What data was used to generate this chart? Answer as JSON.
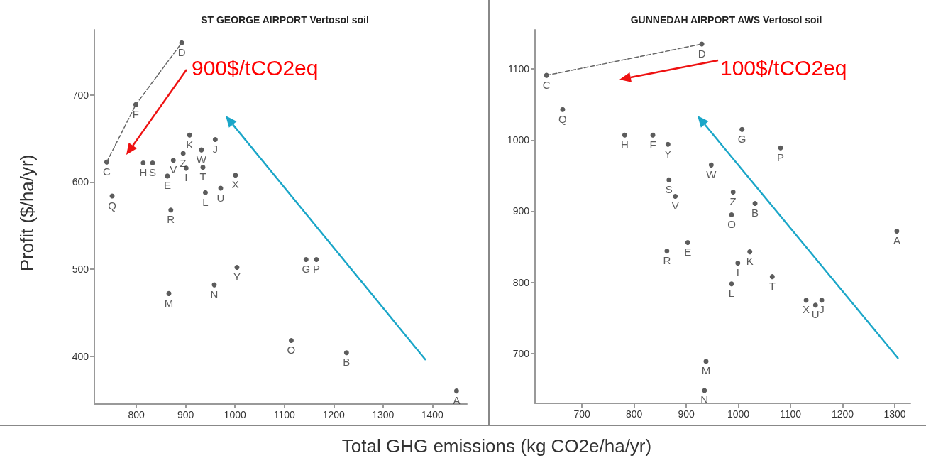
{
  "chart_data": [
    {
      "type": "scatter",
      "title": "ST GEORGE AIRPORT Vertosol soil",
      "xlabel": "Total GHG emissions (kg CO2e/ha/yr)",
      "ylabel": "Profit ($/ha/yr)",
      "annotations": [
        "900$/tCO2eq"
      ],
      "marker": "circle",
      "grid": false,
      "legend": false,
      "xlim": [
        715,
        1470
      ],
      "ylim": [
        345,
        775
      ],
      "xticks": [
        800,
        900,
        1000,
        1100,
        1200,
        1300,
        1400
      ],
      "yticks": [
        400,
        500,
        600,
        700
      ],
      "series": [
        {
          "type": "line",
          "marker": "none",
          "line_style": "dashed",
          "color": "#666666",
          "x": [
            740,
            799,
            892
          ],
          "values": [
            623,
            689,
            760
          ]
        },
        {
          "name": "A",
          "color": "#333333",
          "x": [
            1449
          ],
          "values": [
            360
          ]
        },
        {
          "name": "B",
          "color": "#333333",
          "x": [
            1226
          ],
          "values": [
            404
          ]
        },
        {
          "name": "C",
          "color": "#333333",
          "x": [
            740
          ],
          "values": [
            623
          ]
        },
        {
          "name": "D",
          "color": "#333333",
          "x": [
            892
          ],
          "values": [
            760
          ]
        },
        {
          "name": "E",
          "color": "#333333",
          "x": [
            863
          ],
          "values": [
            607
          ]
        },
        {
          "name": "F",
          "color": "#333333",
          "x": [
            799
          ],
          "values": [
            689
          ]
        },
        {
          "name": "G",
          "color": "#333333",
          "x": [
            1144
          ],
          "values": [
            511
          ]
        },
        {
          "name": "H",
          "color": "#333333",
          "x": [
            814
          ],
          "values": [
            622
          ]
        },
        {
          "name": "I",
          "color": "#333333",
          "x": [
            901
          ],
          "values": [
            616
          ]
        },
        {
          "name": "J",
          "color": "#333333",
          "x": [
            960
          ],
          "values": [
            649
          ]
        },
        {
          "name": "K",
          "color": "#333333",
          "x": [
            908
          ],
          "values": [
            654
          ]
        },
        {
          "name": "L",
          "color": "#333333",
          "x": [
            940
          ],
          "values": [
            588
          ]
        },
        {
          "name": "M",
          "color": "#333333",
          "x": [
            866
          ],
          "values": [
            472
          ]
        },
        {
          "name": "N",
          "color": "#333333",
          "x": [
            958
          ],
          "values": [
            482
          ]
        },
        {
          "name": "O",
          "color": "#333333",
          "x": [
            1114
          ],
          "values": [
            418
          ]
        },
        {
          "name": "P",
          "color": "#333333",
          "x": [
            1165
          ],
          "values": [
            511
          ]
        },
        {
          "name": "Q",
          "color": "#333333",
          "x": [
            751
          ],
          "values": [
            584
          ]
        },
        {
          "name": "R",
          "color": "#333333",
          "x": [
            870
          ],
          "values": [
            568
          ]
        },
        {
          "name": "S",
          "color": "#333333",
          "x": [
            833
          ],
          "values": [
            622
          ]
        },
        {
          "name": "T",
          "color": "#333333",
          "x": [
            935
          ],
          "values": [
            617
          ]
        },
        {
          "name": "U",
          "color": "#333333",
          "x": [
            971
          ],
          "values": [
            593
          ]
        },
        {
          "name": "V",
          "color": "#333333",
          "x": [
            875
          ],
          "values": [
            625
          ]
        },
        {
          "name": "W",
          "color": "#333333",
          "x": [
            932
          ],
          "values": [
            637
          ]
        },
        {
          "name": "X",
          "color": "#333333",
          "x": [
            1001
          ],
          "values": [
            608
          ]
        },
        {
          "name": "Y",
          "color": "#333333",
          "x": [
            1004
          ],
          "values": [
            502
          ]
        },
        {
          "name": "Z",
          "color": "#333333",
          "x": [
            895
          ],
          "values": [
            633
          ]
        }
      ]
    },
    {
      "type": "scatter",
      "title": "GUNNEDAH AIRPORT AWS Vertosol soil",
      "annotations": [
        "100$/tCO2eq"
      ],
      "marker": "circle",
      "grid": false,
      "legend": false,
      "xlim": [
        610,
        1330
      ],
      "ylim": [
        630,
        1155
      ],
      "xticks": [
        700,
        800,
        900,
        1000,
        1100,
        1200,
        1300
      ],
      "yticks": [
        700,
        800,
        900,
        1000,
        1100
      ],
      "series": [
        {
          "type": "line",
          "marker": "none",
          "line_style": "dashed",
          "color": "#666666",
          "x": [
            632,
            930
          ],
          "values": [
            1091,
            1135
          ]
        },
        {
          "name": "A",
          "color": "#333333",
          "x": [
            1304
          ],
          "values": [
            872
          ]
        },
        {
          "name": "B",
          "color": "#333333",
          "x": [
            1032
          ],
          "values": [
            911
          ]
        },
        {
          "name": "C",
          "color": "#333333",
          "x": [
            632
          ],
          "values": [
            1091
          ]
        },
        {
          "name": "D",
          "color": "#333333",
          "x": [
            930
          ],
          "values": [
            1135
          ]
        },
        {
          "name": "E",
          "color": "#333333",
          "x": [
            903
          ],
          "values": [
            856
          ]
        },
        {
          "name": "F",
          "color": "#333333",
          "x": [
            836
          ],
          "values": [
            1007
          ]
        },
        {
          "name": "G",
          "color": "#333333",
          "x": [
            1007
          ],
          "values": [
            1015
          ]
        },
        {
          "name": "H",
          "color": "#333333",
          "x": [
            782
          ],
          "values": [
            1007
          ]
        },
        {
          "name": "I",
          "color": "#333333",
          "x": [
            999
          ],
          "values": [
            827
          ]
        },
        {
          "name": "J",
          "color": "#333333",
          "x": [
            1160
          ],
          "values": [
            775
          ]
        },
        {
          "name": "K",
          "color": "#333333",
          "x": [
            1022
          ],
          "values": [
            843
          ]
        },
        {
          "name": "L",
          "color": "#333333",
          "x": [
            987
          ],
          "values": [
            798
          ]
        },
        {
          "name": "M",
          "color": "#333333",
          "x": [
            938
          ],
          "values": [
            689
          ]
        },
        {
          "name": "N",
          "color": "#333333",
          "x": [
            935
          ],
          "values": [
            648
          ]
        },
        {
          "name": "O",
          "color": "#333333",
          "x": [
            987
          ],
          "values": [
            895
          ]
        },
        {
          "name": "P",
          "color": "#333333",
          "x": [
            1081
          ],
          "values": [
            989
          ]
        },
        {
          "name": "Q",
          "color": "#333333",
          "x": [
            663
          ],
          "values": [
            1043
          ]
        },
        {
          "name": "R",
          "color": "#333333",
          "x": [
            863
          ],
          "values": [
            844
          ]
        },
        {
          "name": "S",
          "color": "#333333",
          "x": [
            867
          ],
          "values": [
            944
          ]
        },
        {
          "name": "T",
          "color": "#333333",
          "x": [
            1065
          ],
          "values": [
            808
          ]
        },
        {
          "name": "U",
          "color": "#333333",
          "x": [
            1148
          ],
          "values": [
            768
          ]
        },
        {
          "name": "V",
          "color": "#333333",
          "x": [
            879
          ],
          "values": [
            921
          ]
        },
        {
          "name": "W",
          "color": "#333333",
          "x": [
            948
          ],
          "values": [
            965
          ]
        },
        {
          "name": "X",
          "color": "#333333",
          "x": [
            1130
          ],
          "values": [
            775
          ]
        },
        {
          "name": "Y",
          "color": "#333333",
          "x": [
            865
          ],
          "values": [
            994
          ]
        },
        {
          "name": "Z",
          "color": "#333333",
          "x": [
            990
          ],
          "values": [
            927
          ]
        }
      ]
    }
  ]
}
